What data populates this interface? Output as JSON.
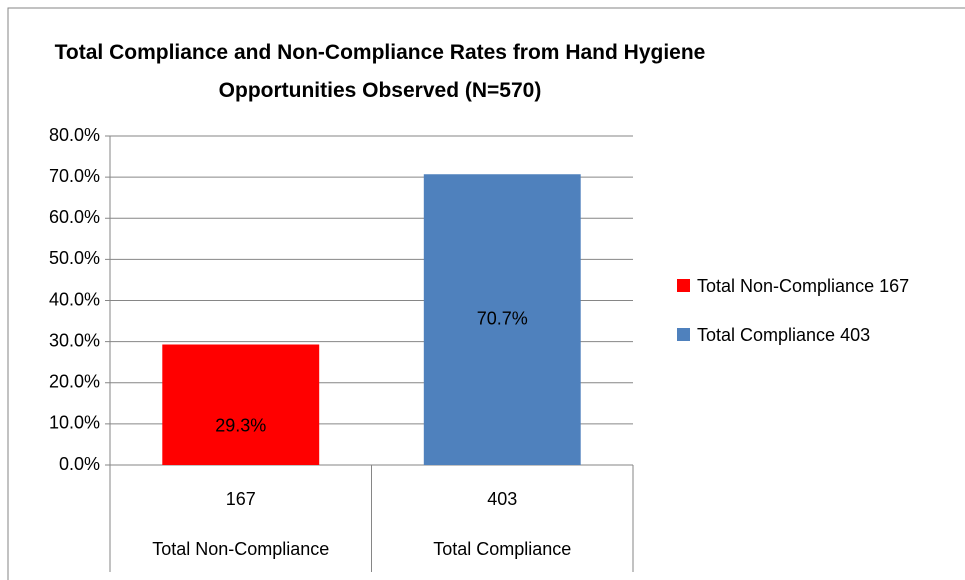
{
  "chart_data": {
    "type": "bar",
    "title": "Total Compliance and Non-Compliance Rates from Hand Hygiene Opportunities Observed (N=570)",
    "categories": [
      "Total Non-Compliance",
      "Total Compliance"
    ],
    "category_sublabels": [
      "167",
      "403"
    ],
    "series": [
      {
        "name": "Total Non-Compliance 167",
        "color": "#ff0000",
        "values": [
          29.3,
          null
        ],
        "value_labels": [
          "29.3%",
          null
        ]
      },
      {
        "name": "Total Compliance 403",
        "color": "#4f81bd",
        "values": [
          null,
          70.7
        ],
        "value_labels": [
          null,
          "70.7%"
        ]
      }
    ],
    "ylim": [
      0,
      80
    ],
    "yticks": [
      {
        "value": 0,
        "label": "0.0%"
      },
      {
        "value": 10,
        "label": "10.0%"
      },
      {
        "value": 20,
        "label": "20.0%"
      },
      {
        "value": 30,
        "label": "30.0%"
      },
      {
        "value": 40,
        "label": "40.0%"
      },
      {
        "value": 50,
        "label": "50.0%"
      },
      {
        "value": 60,
        "label": "60.0%"
      },
      {
        "value": 70,
        "label": "70.0%"
      },
      {
        "value": 80,
        "label": "80.0%"
      }
    ],
    "grid": true,
    "legend": "right"
  }
}
